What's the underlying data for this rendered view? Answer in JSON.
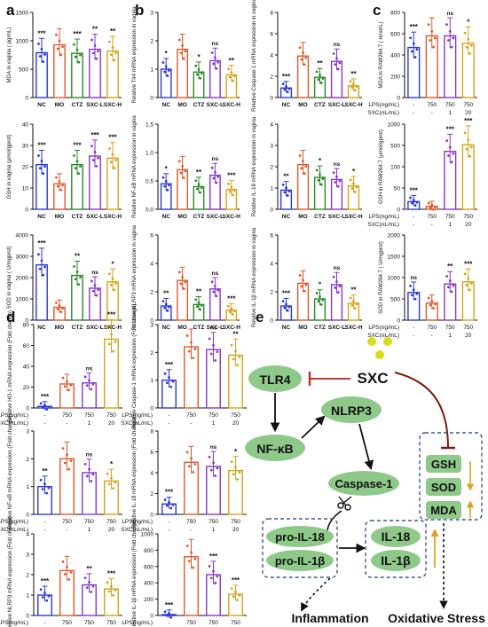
{
  "panels": {
    "a": "a",
    "b": "b",
    "c": "c",
    "d": "d",
    "e": "e"
  },
  "colors": {
    "nc": "#2b39d6",
    "mo": "#e0592a",
    "ctz": "#2a8a2a",
    "sxcl": "#8a35d0",
    "sxch": "#d8a21a",
    "node": "#8fc98a",
    "sxc_dot": "#d6de1a",
    "inhibit": "#c0392b",
    "arrow_up": "#d8a21a"
  },
  "group_labels_5": [
    "NC",
    "MO",
    "CTZ",
    "SXC-L",
    "SXC-H"
  ],
  "lps_row": {
    "label": "LPS(ng/mL)",
    "values": [
      "-",
      "750",
      "750",
      "750"
    ]
  },
  "sxc_row": {
    "label": "SXC(nL/mL)",
    "values": [
      "-",
      "-",
      "1",
      "20"
    ]
  },
  "chart_data": [
    {
      "panel": "a",
      "type": "bar",
      "ylabel": "MDA in vagina ( pg/mL)",
      "categories": [
        "NC",
        "MO",
        "CTZ",
        "SXC-L",
        "SXC-H"
      ],
      "values": [
        790,
        930,
        780,
        850,
        820
      ],
      "ylim": [
        0,
        1500
      ],
      "yticks": [
        "0",
        "500",
        "1000",
        "1500"
      ],
      "sig": [
        "***",
        "",
        "***",
        "**",
        "**"
      ]
    },
    {
      "panel": "a",
      "type": "bar",
      "ylabel": "GSH in vagina (μmol/gprot)",
      "categories": [
        "NC",
        "MO",
        "CTZ",
        "SXC-L",
        "SXC-H"
      ],
      "values": [
        21,
        12,
        21,
        25,
        24
      ],
      "ylim": [
        0,
        40
      ],
      "yticks": [
        "0",
        "10",
        "20",
        "30",
        "40"
      ],
      "sig": [
        "***",
        "",
        "***",
        "***",
        "***"
      ]
    },
    {
      "panel": "a",
      "type": "bar",
      "ylabel": "SOD in vagina ( U/mgprot)",
      "categories": [
        "NC",
        "MO",
        "CTZ",
        "SXC-L",
        "SXC-H"
      ],
      "values": [
        2600,
        600,
        2100,
        1500,
        1800
      ],
      "ylim": [
        0,
        4000
      ],
      "yticks": [
        "0",
        "1000",
        "2000",
        "3000",
        "4000"
      ],
      "sig": [
        "***",
        "",
        "**",
        "ns",
        "*"
      ]
    },
    {
      "panel": "b",
      "type": "bar",
      "ylabel": "Relative Tlr4 mRNA expression in vagina",
      "categories": [
        "NC",
        "MO",
        "CTZ",
        "SXC-L",
        "SXC-H"
      ],
      "values": [
        1.0,
        1.7,
        0.9,
        1.3,
        0.8
      ],
      "ylim": [
        0,
        3
      ],
      "yticks": [
        "0",
        "1",
        "2",
        "3"
      ],
      "sig": [
        "*",
        "",
        "*",
        "ns",
        "**"
      ]
    },
    {
      "panel": "b",
      "type": "bar",
      "ylabel": "Relative Caspase-1 mRNA expression in vagina",
      "categories": [
        "NC",
        "MO",
        "CTZ",
        "SXC-L",
        "SXC-H"
      ],
      "values": [
        0.9,
        3.9,
        1.9,
        3.4,
        1.1
      ],
      "ylim": [
        0,
        8
      ],
      "yticks": [
        "0",
        "2",
        "4",
        "6",
        "8"
      ],
      "sig": [
        "***",
        "",
        "**",
        "ns",
        "**"
      ]
    },
    {
      "panel": "b",
      "type": "bar",
      "ylabel": "Relative NF-κB mRNA expression in vagina",
      "categories": [
        "NC",
        "MO",
        "CTZ",
        "SXC-L",
        "SXC-H"
      ],
      "values": [
        0.45,
        0.7,
        0.4,
        0.6,
        0.35
      ],
      "ylim": [
        0,
        1.5
      ],
      "yticks": [
        "0.0",
        "0.5",
        "1.0",
        "1.5"
      ],
      "sig": [
        "*",
        "",
        "**",
        "ns",
        "***"
      ]
    },
    {
      "panel": "b",
      "type": "bar",
      "ylabel": "Relative IL-18 mRNA expression in vagina",
      "categories": [
        "NC",
        "MO",
        "CTZ",
        "SXC-L",
        "SXC-H"
      ],
      "values": [
        0.9,
        2.1,
        1.5,
        1.4,
        1.1
      ],
      "ylim": [
        0,
        4
      ],
      "yticks": [
        "0",
        "1",
        "2",
        "3",
        "4"
      ],
      "sig": [
        "**",
        "",
        "*",
        "ns",
        "*"
      ]
    },
    {
      "panel": "b",
      "type": "bar",
      "ylabel": "Relative NLRP3 mRNA expression in vagina",
      "categories": [
        "NC",
        "MO",
        "CTZ",
        "SXC-L",
        "SXC-H"
      ],
      "values": [
        1.0,
        2.8,
        1.1,
        2.2,
        0.7
      ],
      "ylim": [
        0,
        6
      ],
      "yticks": [
        "0",
        "2",
        "4",
        "6"
      ],
      "sig": [
        "**",
        "",
        "**",
        "ns",
        "***"
      ]
    },
    {
      "panel": "b",
      "type": "bar",
      "ylabel": "Relative IL-1β mRNA expression in vagina",
      "categories": [
        "NC",
        "MO",
        "CTZ",
        "SXC-L",
        "SXC-H"
      ],
      "values": [
        1.0,
        2.6,
        1.5,
        2.5,
        1.2
      ],
      "ylim": [
        0,
        6
      ],
      "yticks": [
        "0",
        "2",
        "4",
        "6"
      ],
      "sig": [
        "***",
        "",
        "*",
        "ns",
        "**"
      ]
    },
    {
      "panel": "c",
      "type": "bar",
      "ylabel": "MDA in RAW264.7 ( nmol/L)",
      "categories": [
        "1",
        "2",
        "3",
        "4"
      ],
      "values": [
        470,
        580,
        580,
        510
      ],
      "ylim": [
        0,
        800
      ],
      "yticks": [
        "0",
        "200",
        "400",
        "600",
        "800"
      ],
      "sig": [
        "***",
        "",
        "ns",
        "*"
      ]
    },
    {
      "panel": "c",
      "type": "bar",
      "ylabel": "GSH in RAW264.7 (μmol/gprot)",
      "categories": [
        "1",
        "2",
        "3",
        "4"
      ],
      "values": [
        90,
        35,
        680,
        760
      ],
      "ylim": [
        0,
        1000
      ],
      "yticks": [
        "0",
        "50",
        "100",
        "500",
        "1000"
      ],
      "sig": [
        "***",
        "",
        "***",
        "***"
      ]
    },
    {
      "panel": "c",
      "type": "bar",
      "ylabel": "SOD in RAW264.7 ( U/mgprot)",
      "categories": [
        "1",
        "2",
        "3",
        "4"
      ],
      "values": [
        650,
        400,
        850,
        900
      ],
      "ylim": [
        0,
        2000
      ],
      "yticks": [
        "0",
        "500",
        "1000",
        "1500",
        "2000"
      ],
      "sig": [
        "ns",
        "",
        "**",
        "***"
      ]
    },
    {
      "panel": "d",
      "type": "bar",
      "ylabel": "Relative HO-1 mRNA expression (Fold change)",
      "categories": [
        "1",
        "2",
        "3",
        "4"
      ],
      "values": [
        1.5,
        23,
        24,
        66
      ],
      "ylim": [
        0,
        80
      ],
      "yticks": [
        "0",
        "20",
        "40",
        "60",
        "80"
      ],
      "sig": [
        "***",
        "",
        "ns",
        "***"
      ]
    },
    {
      "panel": "d",
      "type": "bar",
      "ylabel": "Relative Caspase-1 mRNA expression (Fold change)",
      "categories": [
        "1",
        "2",
        "3",
        "4"
      ],
      "values": [
        1.0,
        2.2,
        2.1,
        1.9
      ],
      "ylim": [
        0,
        3
      ],
      "yticks": [
        "0",
        "1",
        "2",
        "3"
      ],
      "sig": [
        "***",
        "",
        "ns",
        "**"
      ]
    },
    {
      "panel": "d",
      "type": "bar",
      "ylabel": "Relative NF-κB mRNA expression (Fold change)",
      "categories": [
        "1",
        "2",
        "3",
        "4"
      ],
      "values": [
        1.0,
        2.0,
        1.5,
        1.2
      ],
      "ylim": [
        0,
        3
      ],
      "yticks": [
        "0",
        "1",
        "2",
        "3"
      ],
      "sig": [
        "**",
        "",
        "ns",
        "*"
      ]
    },
    {
      "panel": "d",
      "type": "bar",
      "ylabel": "Relative IL-18 mRNA expression (Fold change)",
      "categories": [
        "1",
        "2",
        "3",
        "4"
      ],
      "values": [
        1.0,
        5.0,
        4.6,
        4.2
      ],
      "ylim": [
        0,
        8
      ],
      "yticks": [
        "0",
        "2",
        "4",
        "6",
        "8"
      ],
      "sig": [
        "***",
        "",
        "ns",
        "*"
      ]
    },
    {
      "panel": "d",
      "type": "bar",
      "ylabel": "Relative NLRP3 mRNA expression (Fold change)",
      "categories": [
        "1",
        "2",
        "3",
        "4"
      ],
      "values": [
        1.0,
        2.2,
        1.5,
        1.3
      ],
      "ylim": [
        0,
        4
      ],
      "yticks": [
        "0",
        "1",
        "2",
        "3",
        "4"
      ],
      "sig": [
        "***",
        "",
        "**",
        "***"
      ]
    },
    {
      "panel": "d",
      "type": "bar",
      "ylabel": "Relative IL-1β mRNA expression (Fold change)",
      "categories": [
        "1",
        "2",
        "3",
        "4"
      ],
      "values": [
        1,
        720,
        500,
        260
      ],
      "ylim": [
        0,
        1000
      ],
      "yticks": [
        "0",
        "200",
        "400",
        "600",
        "800",
        "1000"
      ],
      "sig": [
        "***",
        "",
        "***",
        "***"
      ]
    }
  ],
  "diagram": {
    "sxc": "SXC",
    "tlr4": "TLR4",
    "nfkb": "NF-κB",
    "nlrp3": "NLRP3",
    "caspase1": "Caspase-1",
    "pro_il18": "pro-IL-18",
    "pro_il1b": "pro-IL-1β",
    "il18": "IL-18",
    "il1b": "IL-1β",
    "gsh": "GSH",
    "sod": "SOD",
    "mda": "MDA",
    "inflammation": "Inflammation",
    "oxidative_stress": "Oxidative Stress"
  }
}
